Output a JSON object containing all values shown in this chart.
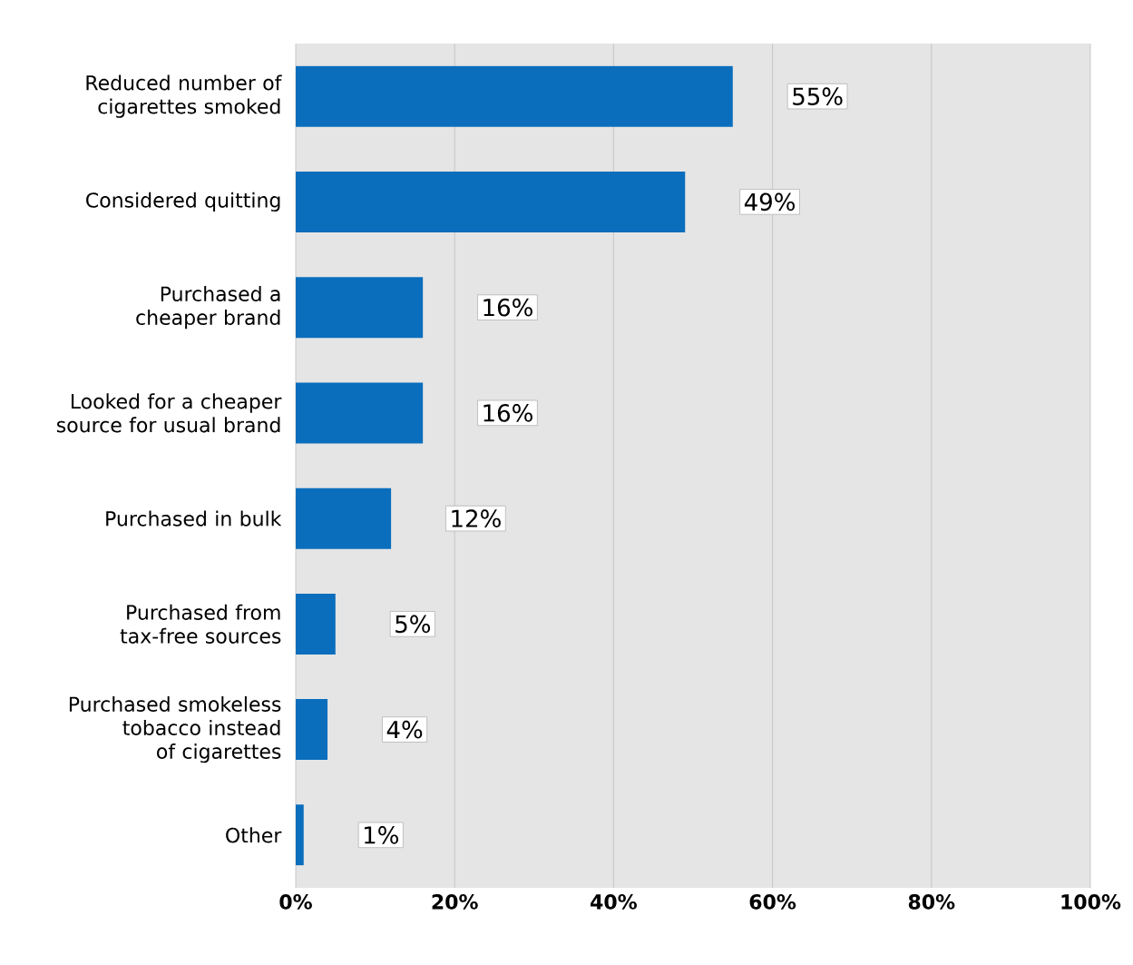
{
  "chart_data": {
    "type": "bar",
    "orientation": "horizontal",
    "categories": [
      "Reduced number of cigarettes smoked",
      "Considered quitting",
      "Purchased a cheaper brand",
      "Looked for a cheaper source for usual brand",
      "Purchased in bulk",
      "Purchased from tax-free sources",
      "Purchased smokeless tobacco instead of cigarettes",
      "Other"
    ],
    "values": [
      55,
      49,
      16,
      16,
      12,
      5,
      4,
      1
    ],
    "value_labels": [
      "55%",
      "49%",
      "16%",
      "16%",
      "12%",
      "5%",
      "4%",
      "1%"
    ],
    "color": "#0a6ebd",
    "xlim": [
      0,
      100
    ],
    "xticks": [
      {
        "value": 0,
        "label": "0%"
      },
      {
        "value": 20,
        "label": "20%"
      },
      {
        "value": 40,
        "label": "40%"
      },
      {
        "value": 60,
        "label": "60%"
      },
      {
        "value": 80,
        "label": "80%"
      },
      {
        "value": 100,
        "label": "100%"
      }
    ],
    "grid": "x"
  }
}
